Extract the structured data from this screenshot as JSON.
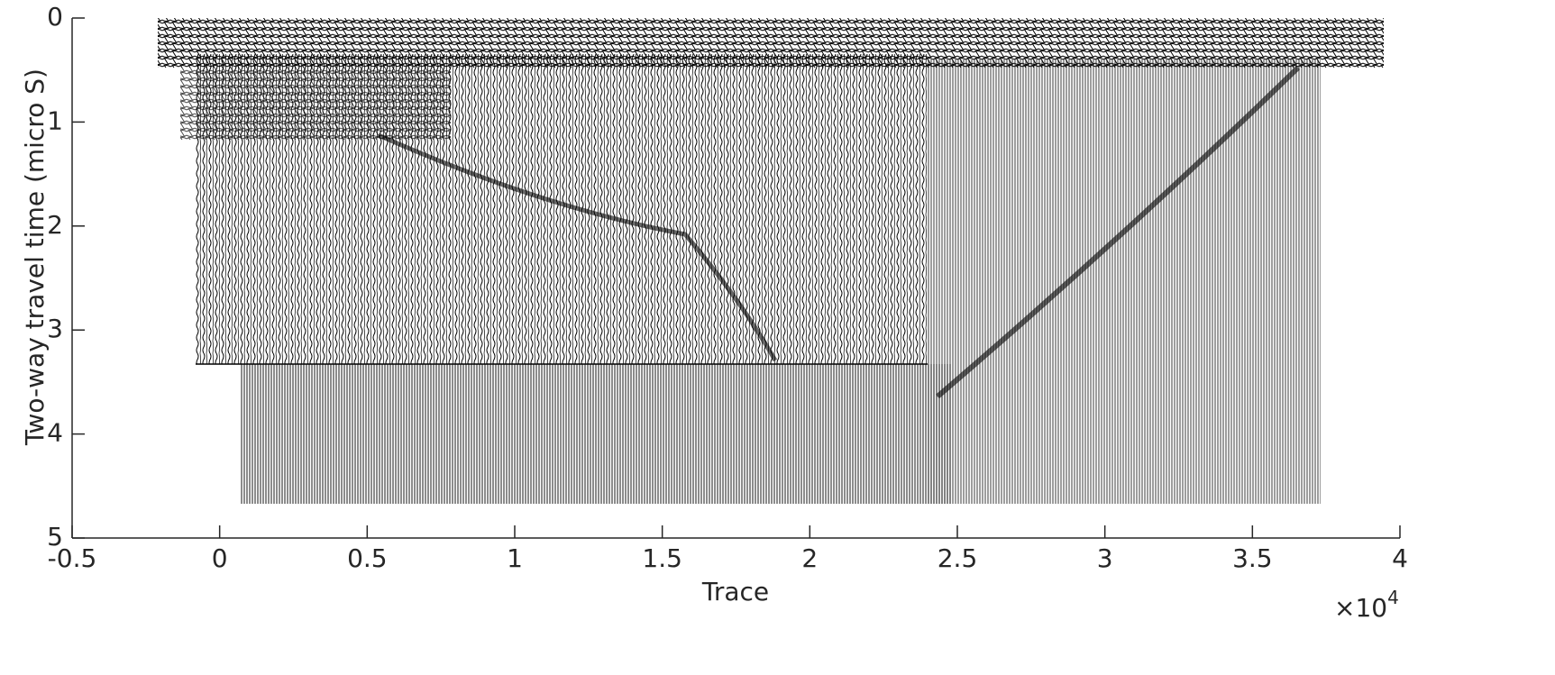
{
  "chart_data": {
    "type": "wiggle",
    "xlabel": "Trace",
    "ylabel": "Two-way travel time (micro S)",
    "x_multiplier": {
      "base": "×10",
      "power": "4"
    },
    "xlim": [
      -0.5,
      4
    ],
    "xticks": [
      -0.5,
      0,
      0.5,
      1,
      1.5,
      2,
      2.5,
      3,
      3.5,
      4
    ],
    "ylim": [
      0,
      5
    ],
    "yticks": [
      0,
      1,
      2,
      3,
      4,
      5
    ],
    "y_reversed": true,
    "color": "#000000"
  }
}
